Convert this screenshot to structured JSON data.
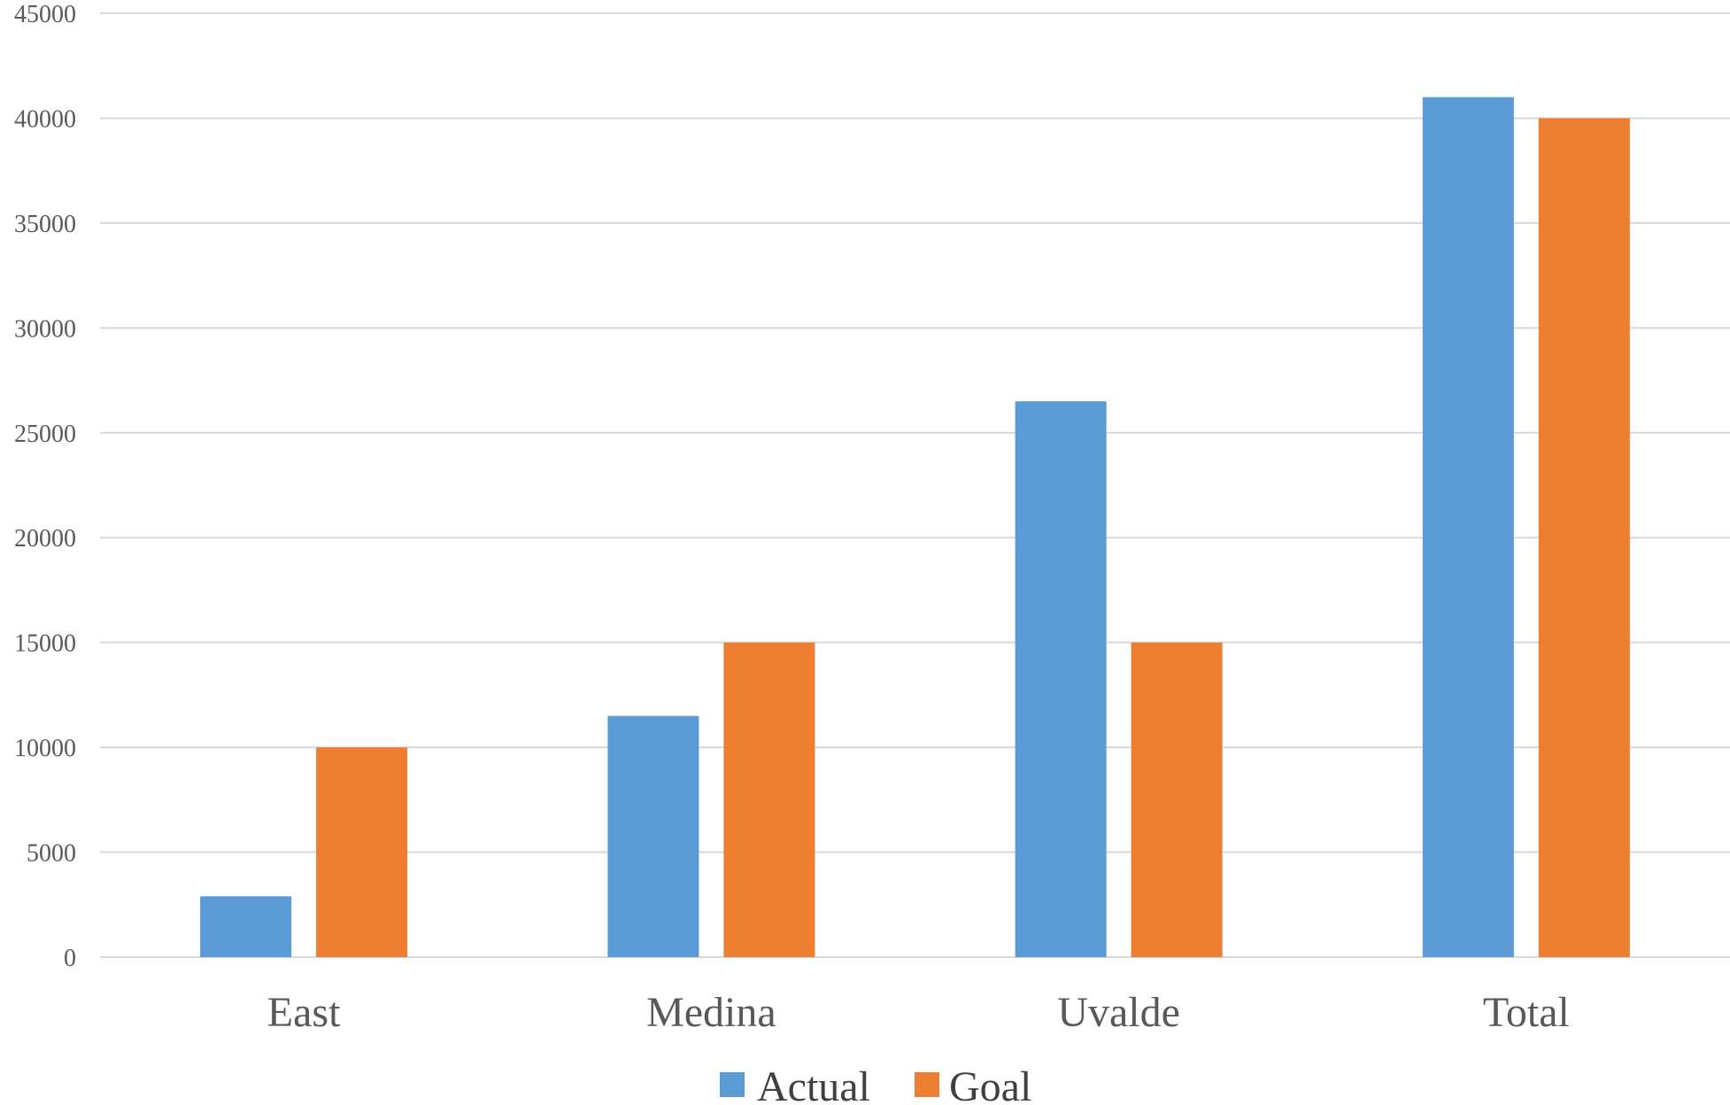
{
  "chart_data": {
    "type": "bar",
    "title": "",
    "xlabel": "",
    "ylabel": "",
    "categories": [
      "East",
      "Medina",
      "Uvalde",
      "Total"
    ],
    "series": [
      {
        "name": "Actual",
        "color": "#5B9BD5",
        "values": [
          2900,
          11500,
          26500,
          41000
        ]
      },
      {
        "name": "Goal",
        "color": "#ED7D31",
        "values": [
          10000,
          15000,
          15000,
          40000
        ]
      }
    ],
    "ylim": [
      0,
      45000
    ],
    "yticks": [
      "0",
      "5000",
      "10000",
      "15000",
      "20000",
      "25000",
      "30000",
      "35000",
      "40000",
      "45000"
    ],
    "grid": true,
    "legend_position": "bottom"
  }
}
